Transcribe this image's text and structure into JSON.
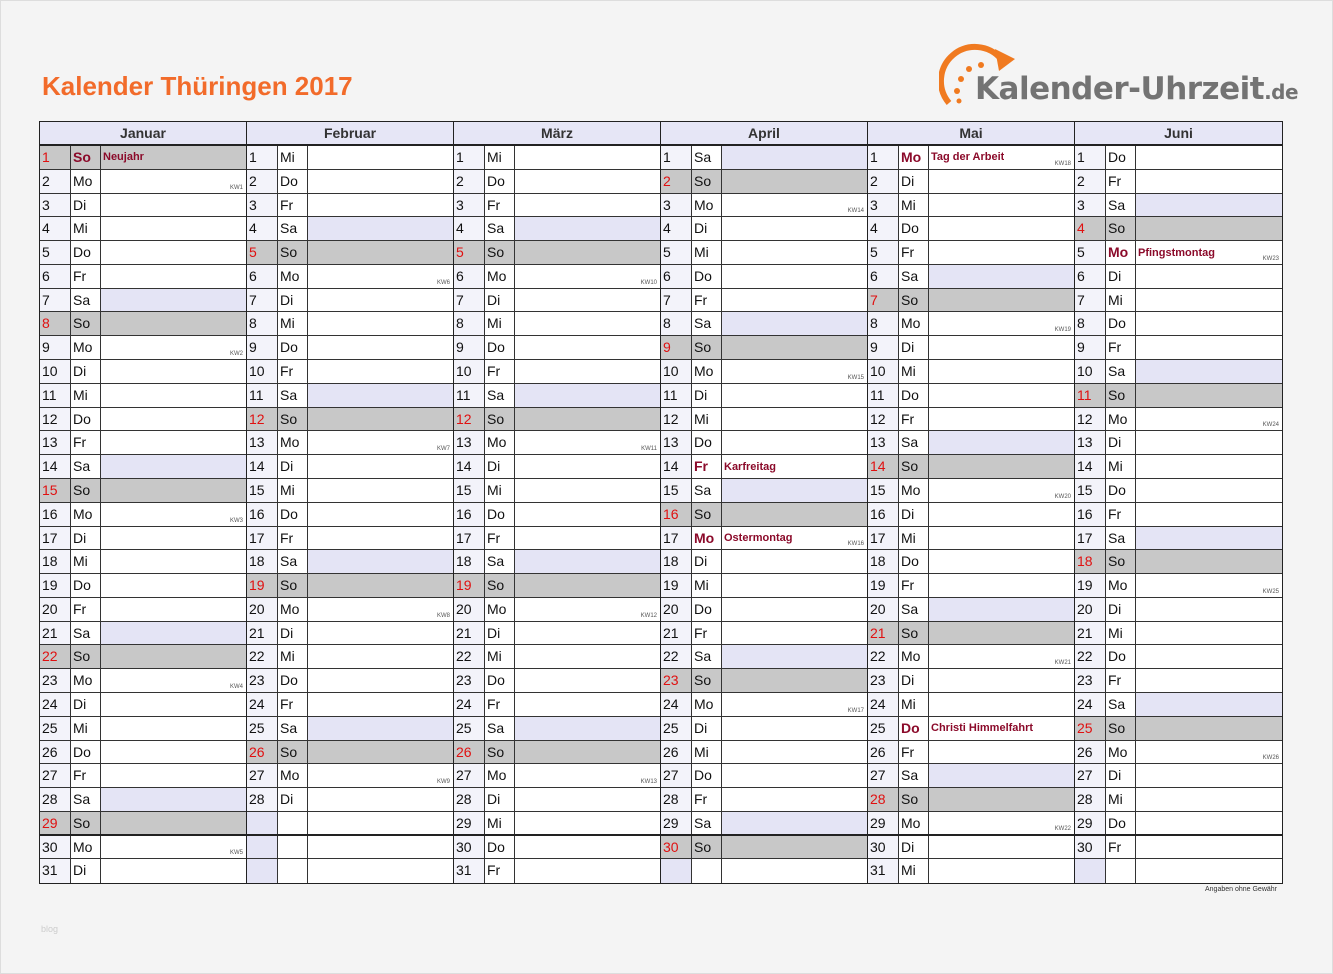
{
  "title": "Kalender Thüringen 2017",
  "logo": {
    "name": "Kalender-Uhrzeit",
    "tld": ".de"
  },
  "colors": {
    "title": "#f26b2a",
    "header": "#e6e6f6",
    "sunday": "#c8c8c8",
    "saturday": "#e4e4f5",
    "holiday": "#8b0a2a",
    "sunday_number": "#e01010"
  },
  "months": [
    {
      "name": "Januar",
      "wd": [
        "So",
        "Mo",
        "Di",
        "Mi",
        "Do",
        "Fr",
        "Sa",
        "So",
        "Mo",
        "Di",
        "Mi",
        "Do",
        "Fr",
        "Sa",
        "So",
        "Mo",
        "Di",
        "Mi",
        "Do",
        "Fr",
        "Sa",
        "So",
        "Mo",
        "Di",
        "Mi",
        "Do",
        "Fr",
        "Sa",
        "So",
        "Mo",
        "Di"
      ],
      "holidays": {
        "1": "Neujahr"
      },
      "kw": {
        "2": "KW1",
        "9": "KW2",
        "16": "KW3",
        "23": "KW4",
        "30": "KW5"
      }
    },
    {
      "name": "Februar",
      "wd": [
        "Mi",
        "Do",
        "Fr",
        "Sa",
        "So",
        "Mo",
        "Di",
        "Mi",
        "Do",
        "Fr",
        "Sa",
        "So",
        "Mo",
        "Di",
        "Mi",
        "Do",
        "Fr",
        "Sa",
        "So",
        "Mo",
        "Di",
        "Mi",
        "Do",
        "Fr",
        "Sa",
        "So",
        "Mo",
        "Di"
      ],
      "holidays": {},
      "kw": {
        "6": "KW6",
        "13": "KW7",
        "20": "KW8",
        "27": "KW9"
      }
    },
    {
      "name": "März",
      "wd": [
        "Mi",
        "Do",
        "Fr",
        "Sa",
        "So",
        "Mo",
        "Di",
        "Mi",
        "Do",
        "Fr",
        "Sa",
        "So",
        "Mo",
        "Di",
        "Mi",
        "Do",
        "Fr",
        "Sa",
        "So",
        "Mo",
        "Di",
        "Mi",
        "Do",
        "Fr",
        "Sa",
        "So",
        "Mo",
        "Di",
        "Mi",
        "Do",
        "Fr"
      ],
      "holidays": {},
      "kw": {
        "6": "KW10",
        "13": "KW11",
        "20": "KW12",
        "27": "KW13"
      }
    },
    {
      "name": "April",
      "wd": [
        "Sa",
        "So",
        "Mo",
        "Di",
        "Mi",
        "Do",
        "Fr",
        "Sa",
        "So",
        "Mo",
        "Di",
        "Mi",
        "Do",
        "Fr",
        "Sa",
        "So",
        "Mo",
        "Di",
        "Mi",
        "Do",
        "Fr",
        "Sa",
        "So",
        "Mo",
        "Di",
        "Mi",
        "Do",
        "Fr",
        "Sa",
        "So"
      ],
      "holidays": {
        "14": "Karfreitag",
        "17": "Ostermontag"
      },
      "kw": {
        "3": "KW14",
        "10": "KW15",
        "17": "KW16",
        "24": "KW17"
      }
    },
    {
      "name": "Mai",
      "wd": [
        "Mo",
        "Di",
        "Mi",
        "Do",
        "Fr",
        "Sa",
        "So",
        "Mo",
        "Di",
        "Mi",
        "Do",
        "Fr",
        "Sa",
        "So",
        "Mo",
        "Di",
        "Mi",
        "Do",
        "Fr",
        "Sa",
        "So",
        "Mo",
        "Di",
        "Mi",
        "Do",
        "Fr",
        "Sa",
        "So",
        "Mo",
        "Di",
        "Mi"
      ],
      "holidays": {
        "1": "Tag der Arbeit",
        "25": "Christi Himmelfahrt"
      },
      "kw": {
        "1": "KW18",
        "8": "KW19",
        "15": "KW20",
        "22": "KW21",
        "29": "KW22"
      }
    },
    {
      "name": "Juni",
      "wd": [
        "Do",
        "Fr",
        "Sa",
        "So",
        "Mo",
        "Di",
        "Mi",
        "Do",
        "Fr",
        "Sa",
        "So",
        "Mo",
        "Di",
        "Mi",
        "Do",
        "Fr",
        "Sa",
        "So",
        "Mo",
        "Di",
        "Mi",
        "Do",
        "Fr",
        "Sa",
        "So",
        "Mo",
        "Di",
        "Mi",
        "Do",
        "Fr"
      ],
      "holidays": {
        "5": "Pfingstmontag"
      },
      "kw": {
        "5": "KW23",
        "12": "KW24",
        "19": "KW25",
        "26": "KW26"
      }
    }
  ],
  "footer": "Angaben ohne Gewähr",
  "watermark": "blog"
}
